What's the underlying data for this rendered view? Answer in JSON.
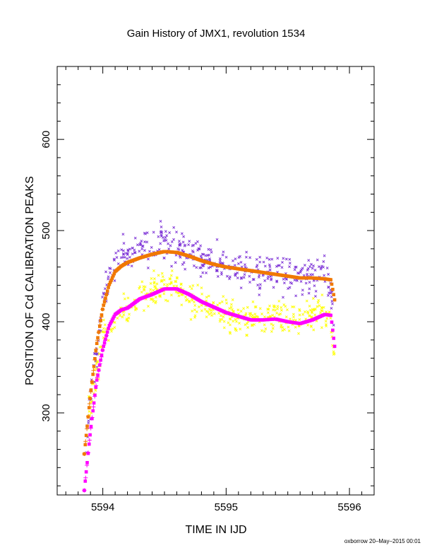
{
  "chart_data": {
    "type": "scatter",
    "title": "Gain History of JMX1, revolution 1534",
    "xlabel": "TIME IN IJD",
    "ylabel": "POSITION OF Cd CALIBRATION PEAKS",
    "xlim": [
      5593.63,
      5596.2
    ],
    "ylim": [
      210,
      680
    ],
    "x_ticks": [
      "5594",
      "5595",
      "5596"
    ],
    "x_tick_values": [
      5594,
      5595,
      5596
    ],
    "y_ticks": [
      "300",
      "400",
      "500",
      "600"
    ],
    "y_tick_values": [
      300,
      400,
      500,
      600
    ],
    "grid": false,
    "series": [
      {
        "marker": "x",
        "color": "#7b2fd6",
        "x": [
          5593.86,
          5593.9,
          5593.93,
          5593.97,
          5594.0,
          5594.05,
          5594.1,
          5594.15,
          5594.2,
          5594.3,
          5594.4,
          5594.5,
          5594.6,
          5594.7,
          5594.8,
          5594.9,
          5595.0,
          5595.1,
          5595.2,
          5595.3,
          5595.4,
          5595.5,
          5595.6,
          5595.7,
          5595.8,
          5595.85,
          5595.88
        ],
        "y": [
          262,
          312,
          345,
          385,
          420,
          448,
          462,
          475,
          470,
          480,
          483,
          487,
          485,
          478,
          472,
          466,
          462,
          458,
          456,
          454,
          451,
          449,
          449,
          450,
          452,
          432,
          405
        ],
        "spread": 16
      },
      {
        "marker": "x",
        "color": "#ffff00",
        "x": [
          5593.88,
          5593.93,
          5593.97,
          5594.0,
          5594.05,
          5594.1,
          5594.15,
          5594.2,
          5594.3,
          5594.4,
          5594.5,
          5594.6,
          5594.7,
          5594.8,
          5594.9,
          5595.0,
          5595.1,
          5595.2,
          5595.3,
          5595.4,
          5595.5,
          5595.6,
          5595.7,
          5595.8,
          5595.85,
          5595.88
        ],
        "y": [
          300,
          330,
          360,
          385,
          395,
          405,
          415,
          418,
          425,
          432,
          440,
          438,
          428,
          420,
          415,
          408,
          404,
          405,
          408,
          407,
          404,
          403,
          408,
          412,
          395,
          360
        ],
        "spread": 15
      },
      {
        "marker": "dot",
        "color": "#f07800",
        "x": [
          5593.85,
          5593.9,
          5593.95,
          5594.0,
          5594.05,
          5594.1,
          5594.15,
          5594.2,
          5594.3,
          5594.4,
          5594.5,
          5594.6,
          5594.7,
          5594.8,
          5594.9,
          5595.0,
          5595.1,
          5595.2,
          5595.3,
          5595.4,
          5595.5,
          5595.6,
          5595.7,
          5595.8,
          5595.85,
          5595.88
        ],
        "y": [
          255,
          320,
          375,
          415,
          440,
          455,
          461,
          465,
          470,
          474,
          477,
          476,
          472,
          467,
          463,
          460,
          458,
          456,
          454,
          452,
          450,
          448,
          448,
          447,
          446,
          424
        ]
      },
      {
        "marker": "dot",
        "color": "#ff00ff",
        "x": [
          5593.85,
          5593.9,
          5593.95,
          5594.0,
          5594.05,
          5594.1,
          5594.15,
          5594.2,
          5594.25,
          5594.3,
          5594.4,
          5594.5,
          5594.6,
          5594.7,
          5594.8,
          5594.9,
          5595.0,
          5595.1,
          5595.2,
          5595.3,
          5595.4,
          5595.5,
          5595.6,
          5595.7,
          5595.8,
          5595.85,
          5595.88
        ],
        "y": [
          215,
          280,
          335,
          370,
          395,
          408,
          413,
          415,
          420,
          425,
          430,
          436,
          436,
          430,
          422,
          416,
          410,
          406,
          402,
          402,
          403,
          400,
          398,
          402,
          408,
          407,
          373
        ]
      }
    ]
  },
  "footer": "oxborrow 20–May–2015 00:01"
}
